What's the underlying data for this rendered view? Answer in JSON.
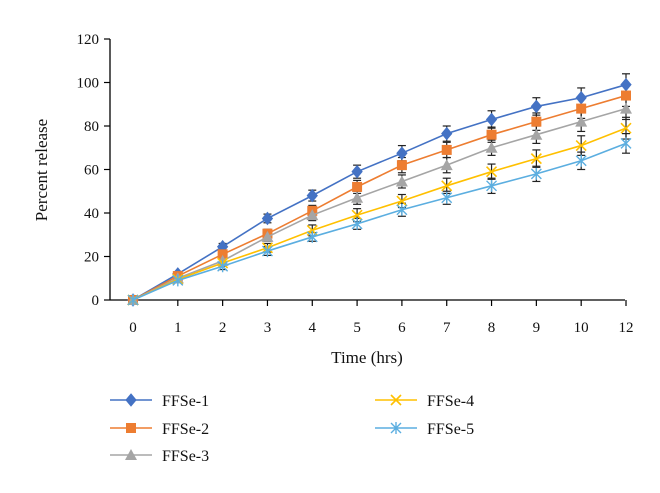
{
  "chart_data": {
    "type": "line",
    "xlabel": "Time (hrs)",
    "ylabel": "Percent release",
    "ylim": [
      0,
      120
    ],
    "y_ticks": [
      0,
      20,
      40,
      60,
      80,
      100,
      120
    ],
    "categories": [
      "0",
      "1",
      "2",
      "3",
      "4",
      "5",
      "6",
      "7",
      "8",
      "9",
      "10",
      "12"
    ],
    "grid": false,
    "error_bars": true,
    "legend_position": "bottom",
    "series": [
      {
        "name": "FFSe-1",
        "color": "#4472C4",
        "marker": "diamond",
        "values": [
          0,
          12,
          24.5,
          37.5,
          48,
          59,
          67.5,
          76.5,
          83,
          89,
          93,
          99
        ],
        "errors": [
          0,
          1,
          1.5,
          2,
          2.5,
          3,
          3.5,
          3.5,
          4,
          4,
          4.5,
          5
        ]
      },
      {
        "name": "FFSe-2",
        "color": "#ED7D31",
        "marker": "square",
        "values": [
          0,
          11,
          21,
          30.5,
          41,
          52,
          62,
          69,
          76,
          82,
          88,
          94
        ],
        "errors": [
          0,
          1,
          1.5,
          2,
          2.5,
          3,
          3.5,
          3.5,
          3.5,
          4,
          4.5,
          5
        ]
      },
      {
        "name": "FFSe-3",
        "color": "#A5A5A5",
        "marker": "triangle",
        "values": [
          0,
          10,
          18,
          29,
          39,
          47,
          54.5,
          62,
          70,
          76,
          82,
          88
        ],
        "errors": [
          0,
          1,
          1.5,
          2,
          2.5,
          3,
          3,
          3.5,
          3.5,
          4,
          4.5,
          5
        ]
      },
      {
        "name": "FFSe-4",
        "color": "#FFC000",
        "marker": "x",
        "values": [
          0,
          9.5,
          17,
          24,
          32,
          39,
          45.5,
          52.5,
          59,
          65,
          71,
          79
        ],
        "errors": [
          0,
          1,
          1.5,
          2,
          2.5,
          3,
          3,
          3.5,
          3.5,
          4,
          4.5,
          5
        ]
      },
      {
        "name": "FFSe-5",
        "color": "#5BAEE0",
        "marker": "star",
        "values": [
          0,
          9,
          15.5,
          22.5,
          29,
          35,
          41.5,
          47,
          52.5,
          58,
          64,
          72
        ],
        "errors": [
          0,
          1,
          1.5,
          2,
          2,
          2.5,
          3,
          3,
          3.5,
          3.5,
          4,
          4.5
        ]
      }
    ]
  }
}
